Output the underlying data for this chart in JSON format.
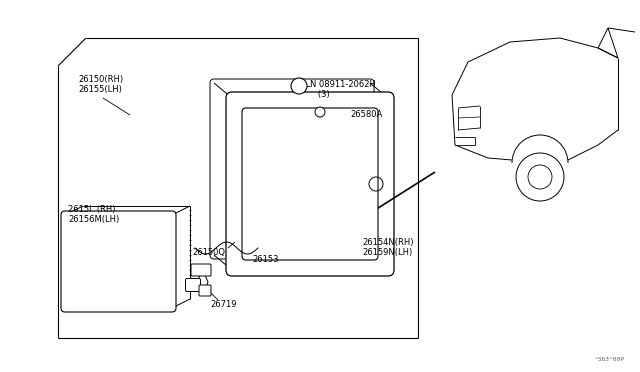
{
  "bg_color": "#ffffff",
  "fig_width": 6.4,
  "fig_height": 3.72,
  "dpi": 100,
  "watermark": "^363^00P",
  "parts": {
    "main_box_label": "26150(RH)\n26155(LH)",
    "lamp_body_label": "2615l  (RH)\n26156M(LH)",
    "nut_label": "N 08911-2062H\n   (3)",
    "screw_label": "26580A",
    "gasket_label": "26154N(RH)\n26159N(LH)",
    "socket_label": "26153",
    "housing_label": "26150Q",
    "bulb_label": "26719"
  },
  "text_color": "#000000",
  "line_color": "#000000",
  "font_size": 5.5
}
